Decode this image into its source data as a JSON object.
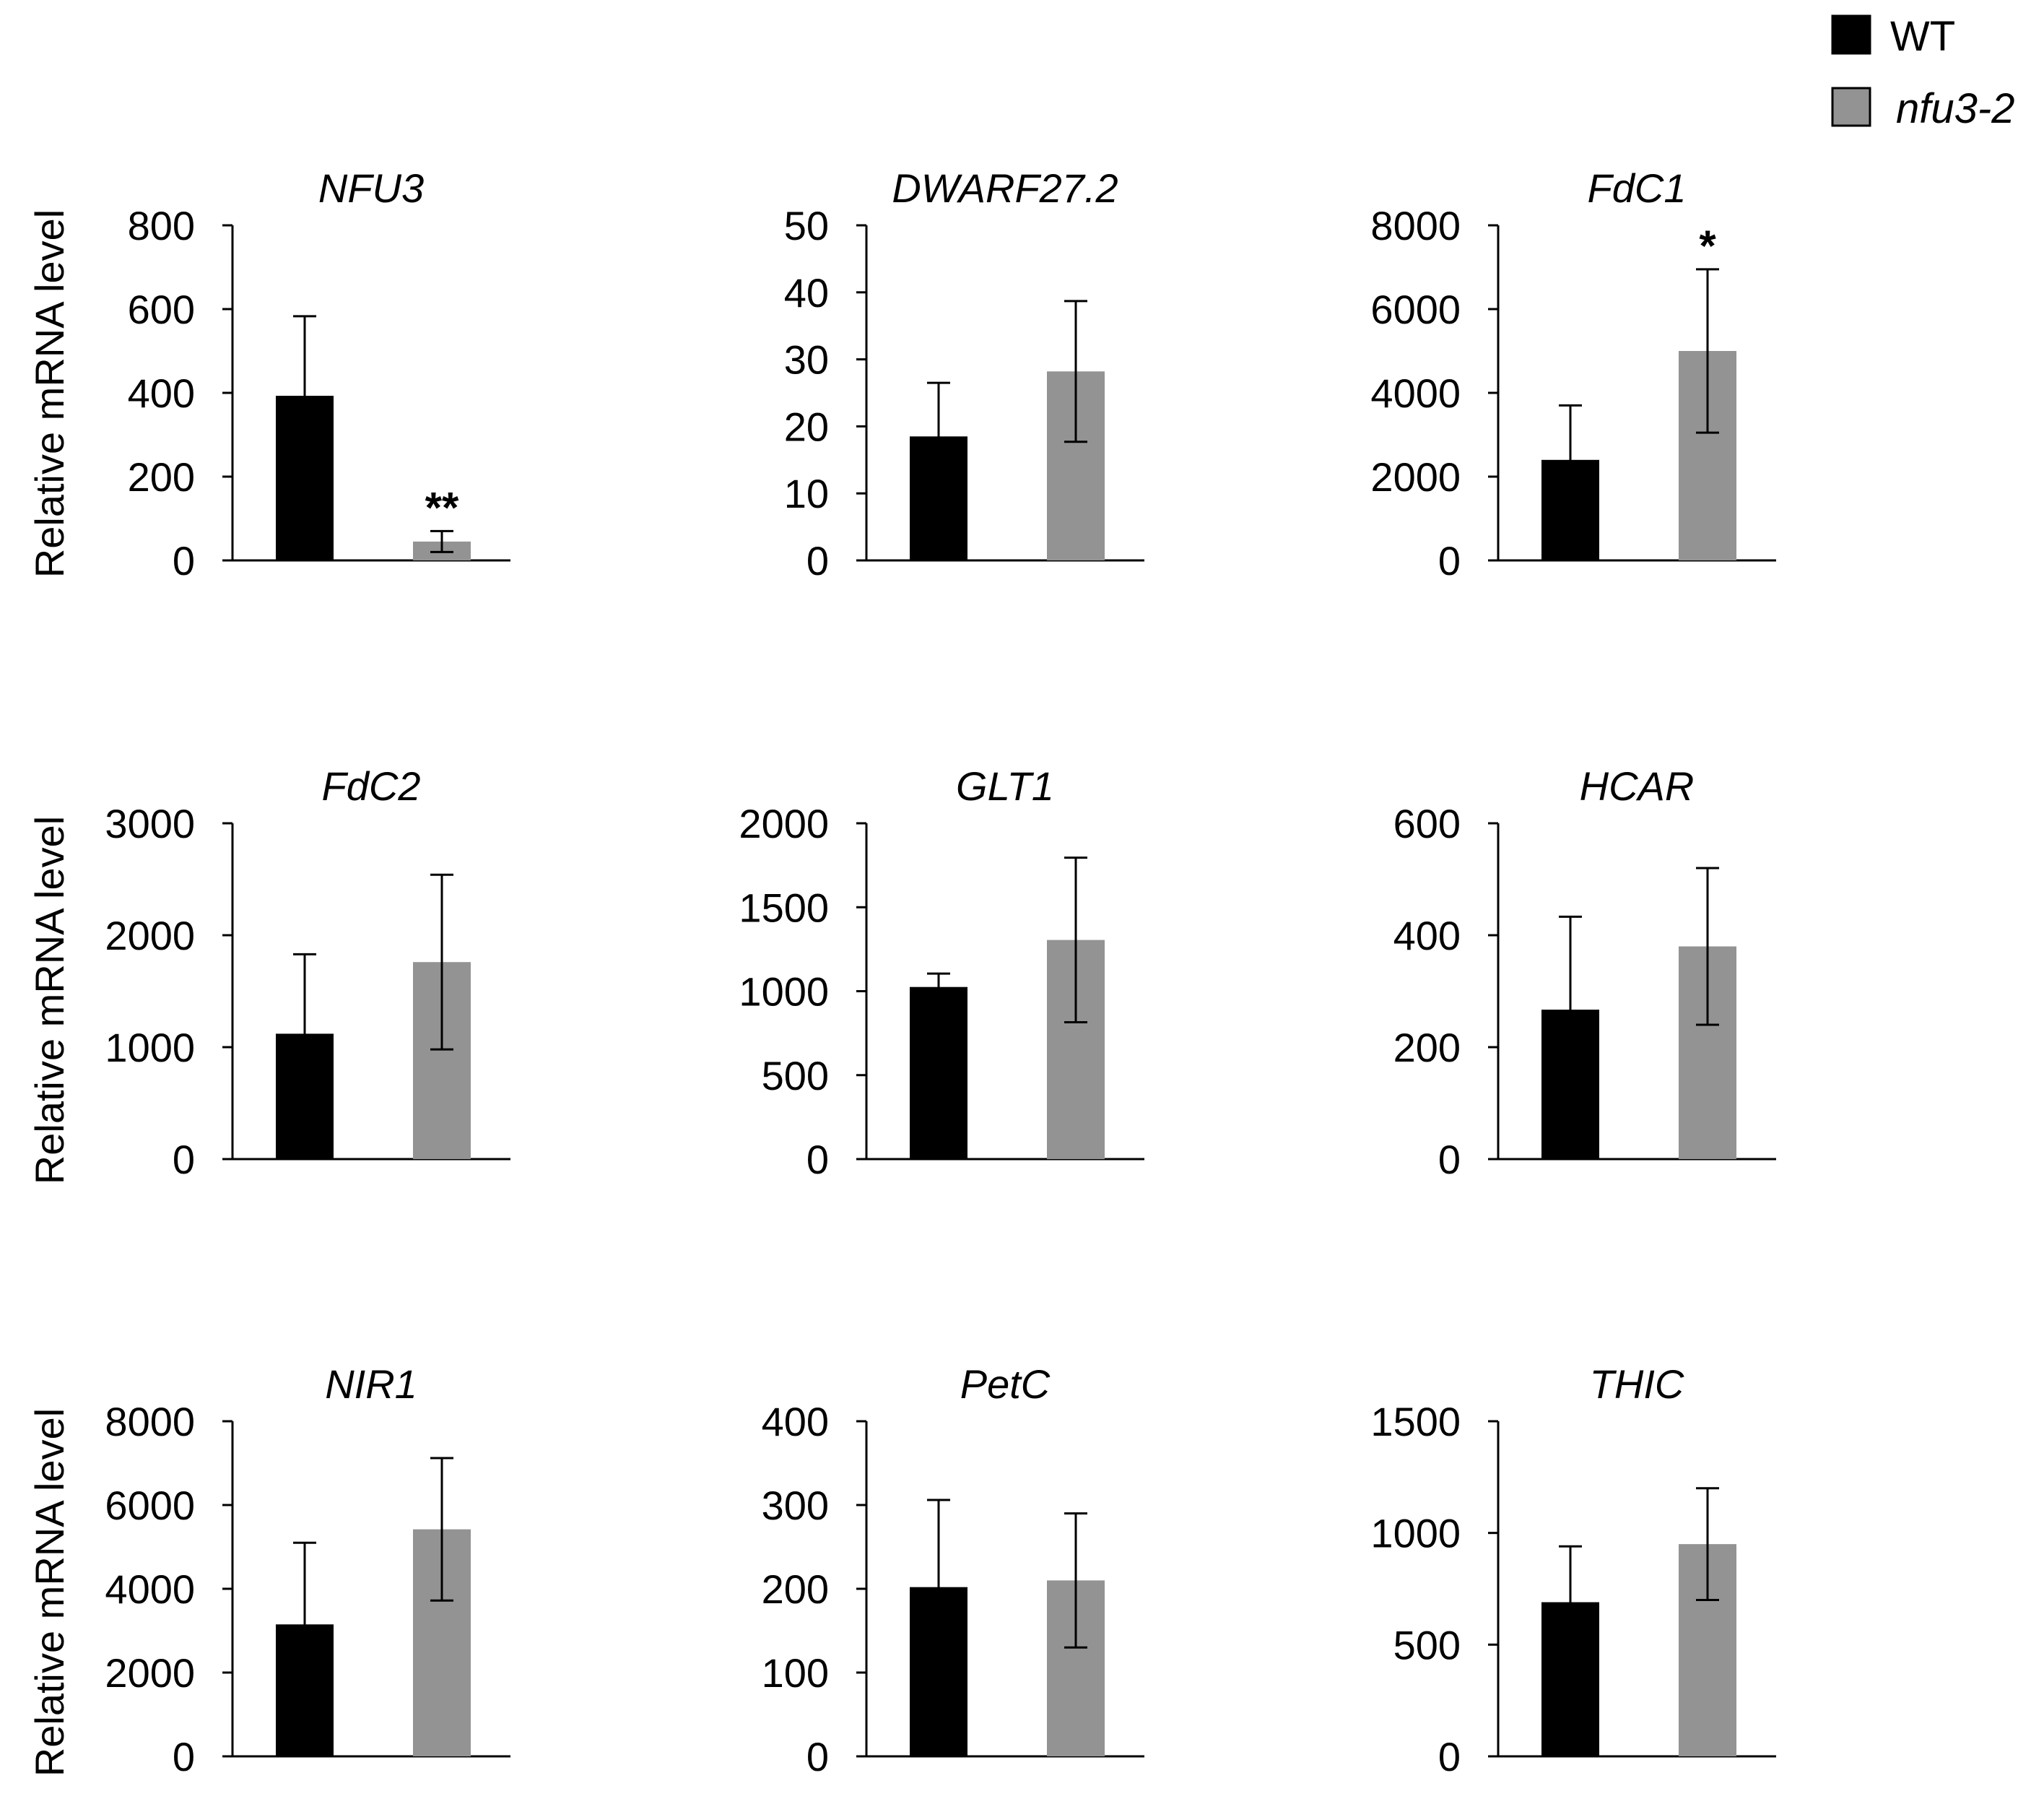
{
  "legend": {
    "wt_label": "WT",
    "mutant_label": "nfu3-2",
    "wt_color": "#000000",
    "mutant_color": "#939393"
  },
  "y_axis_label": "Relative mRNA level",
  "chart_data": [
    {
      "type": "bar",
      "title": "NFU3",
      "categories": [
        "WT",
        "nfu3-2"
      ],
      "values": [
        393,
        45
      ],
      "errors": [
        190,
        25
      ],
      "annotations": [
        "",
        "**"
      ],
      "ylim": [
        0,
        800
      ],
      "ticks": [
        0,
        200,
        400,
        600,
        800
      ],
      "tick_labels": [
        "0",
        "200",
        "400",
        "600",
        "800"
      ]
    },
    {
      "type": "bar",
      "title": "DWARF27.2",
      "categories": [
        "WT",
        "nfu3-2"
      ],
      "values": [
        18.5,
        28.2
      ],
      "errors": [
        8,
        10.5
      ],
      "annotations": [
        "",
        ""
      ],
      "ylim": [
        0,
        50
      ],
      "ticks": [
        0,
        10,
        20,
        30,
        40,
        50
      ],
      "tick_labels": [
        "0",
        "10",
        "20",
        "30",
        "40",
        "50"
      ]
    },
    {
      "type": "bar",
      "title": "FdC1",
      "categories": [
        "WT",
        "nfu3-2"
      ],
      "values": [
        2400,
        5000
      ],
      "errors": [
        1300,
        1950
      ],
      "annotations": [
        "",
        "*"
      ],
      "ylim": [
        0,
        8000
      ],
      "ticks": [
        0,
        2000,
        4000,
        6000,
        8000
      ],
      "tick_labels": [
        "0",
        "2000",
        "4000",
        "6000",
        "8000"
      ]
    },
    {
      "type": "bar",
      "title": "FdC2",
      "categories": [
        "WT",
        "nfu3-2"
      ],
      "values": [
        1120,
        1760
      ],
      "errors": [
        710,
        780
      ],
      "annotations": [
        "",
        ""
      ],
      "ylim": [
        0,
        3000
      ],
      "ticks": [
        0,
        1000,
        2000,
        3000
      ],
      "tick_labels": [
        "0",
        "1000",
        "2000",
        "3000"
      ]
    },
    {
      "type": "bar",
      "title": "GLT1",
      "categories": [
        "WT",
        "nfu3-2"
      ],
      "values": [
        1025,
        1305
      ],
      "errors": [
        80,
        490
      ],
      "annotations": [
        "",
        ""
      ],
      "ylim": [
        0,
        2000
      ],
      "ticks": [
        0,
        500,
        1000,
        1500,
        2000
      ],
      "tick_labels": [
        "0",
        "500",
        "1000",
        "1500",
        "2000"
      ]
    },
    {
      "type": "bar",
      "title": "HCAR",
      "categories": [
        "WT",
        "nfu3-2"
      ],
      "values": [
        267,
        380
      ],
      "errors": [
        166,
        140
      ],
      "annotations": [
        "",
        ""
      ],
      "ylim": [
        0,
        600
      ],
      "ticks": [
        0,
        200,
        400,
        600
      ],
      "tick_labels": [
        "0",
        "200",
        "400",
        "600"
      ]
    },
    {
      "type": "bar",
      "title": "NIR1",
      "categories": [
        "WT",
        "nfu3-2"
      ],
      "values": [
        3150,
        5420
      ],
      "errors": [
        1950,
        1700
      ],
      "annotations": [
        "",
        ""
      ],
      "ylim": [
        0,
        8000
      ],
      "ticks": [
        0,
        2000,
        4000,
        6000,
        8000
      ],
      "tick_labels": [
        "0",
        "2000",
        "4000",
        "6000",
        "8000"
      ]
    },
    {
      "type": "bar",
      "title": "PetC",
      "categories": [
        "WT",
        "nfu3-2"
      ],
      "values": [
        202,
        210
      ],
      "errors": [
        104,
        80
      ],
      "annotations": [
        "",
        ""
      ],
      "ylim": [
        0,
        400
      ],
      "ticks": [
        0,
        100,
        200,
        300,
        400
      ],
      "tick_labels": [
        "0",
        "100",
        "200",
        "300",
        "400"
      ]
    },
    {
      "type": "bar",
      "title": "THIC",
      "categories": [
        "WT",
        "nfu3-2"
      ],
      "values": [
        690,
        950
      ],
      "errors": [
        250,
        250
      ],
      "annotations": [
        "",
        ""
      ],
      "ylim": [
        0,
        1500
      ],
      "ticks": [
        0,
        500,
        1000,
        1500
      ],
      "tick_labels": [
        "0",
        "500",
        "1000",
        "1500"
      ]
    }
  ]
}
